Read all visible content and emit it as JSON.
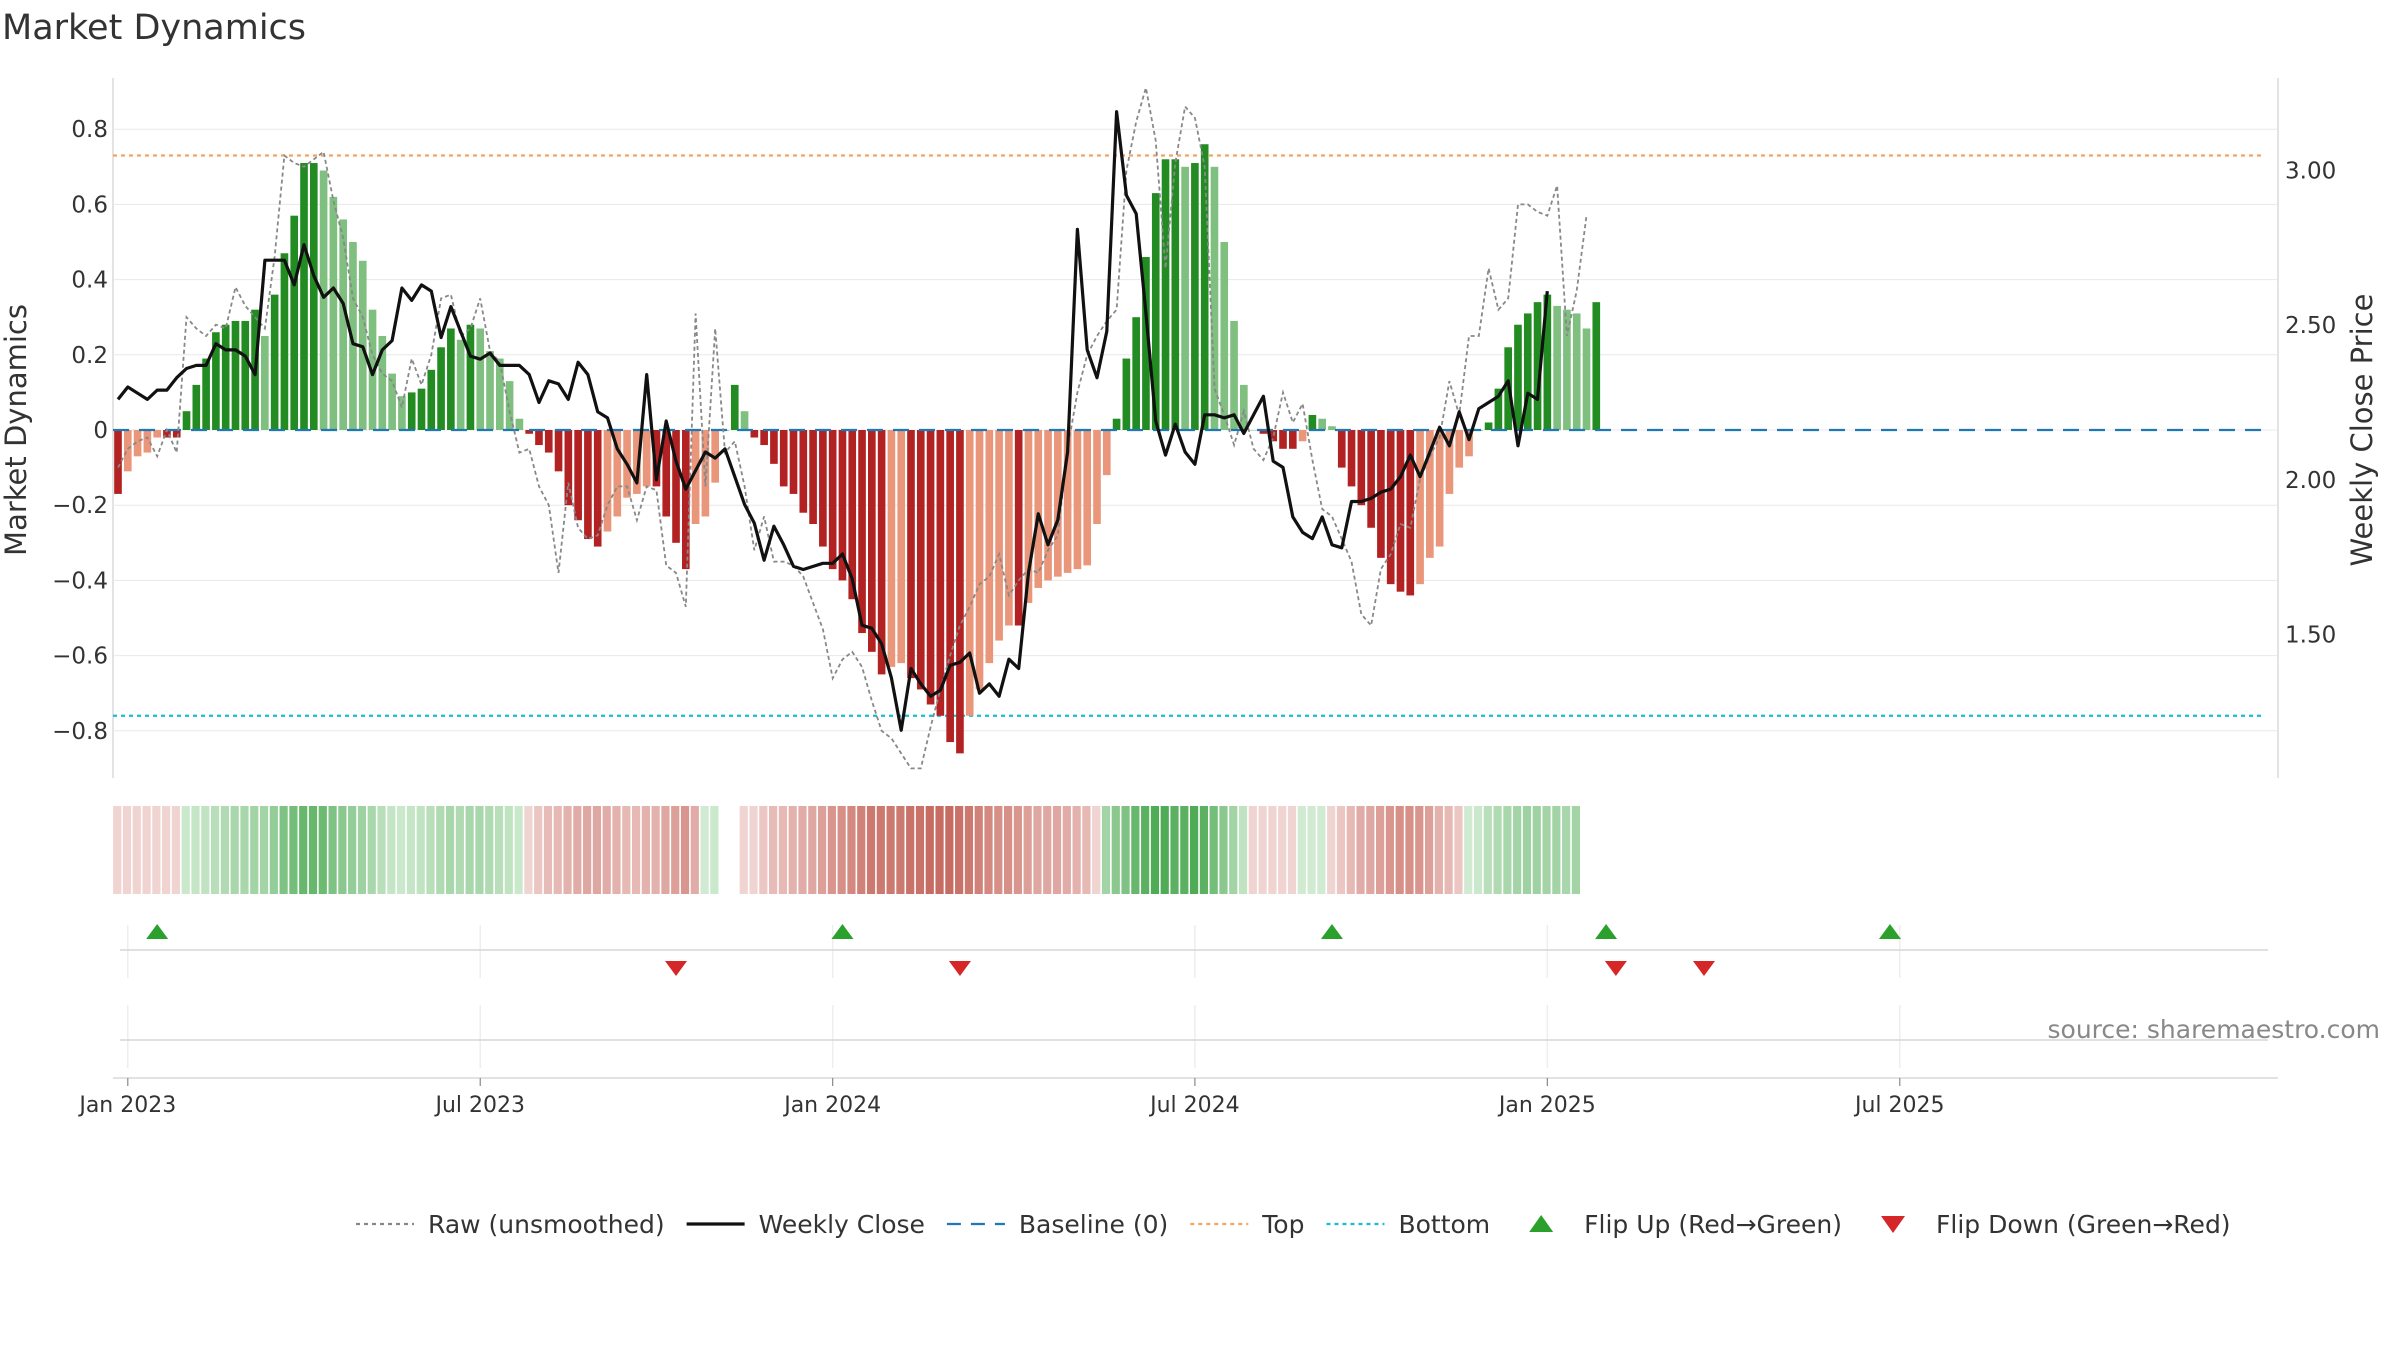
{
  "title": "Market Dynamics",
  "source_text": "source: sharemaestro.com",
  "chart_data": {
    "type": "bar",
    "title": "Market Dynamics",
    "ylabel_left": "Market Dynamics",
    "ylabel_right": "Weekly Close Price",
    "ylim_left": [
      -0.92,
      0.93
    ],
    "ylim_right": [
      1.03,
      3.21
    ],
    "yticks_left": [
      "0.8",
      "0.6",
      "0.4",
      "0.2",
      "0",
      "−0.2",
      "−0.4",
      "−0.6",
      "−0.8"
    ],
    "yticks_left_values": [
      0.8,
      0.6,
      0.4,
      0.2,
      0,
      -0.2,
      -0.4,
      -0.6,
      -0.8
    ],
    "yticks_right": [
      "3.00",
      "2.50",
      "2.00",
      "1.50"
    ],
    "yticks_right_values": [
      3.0,
      2.5,
      2.0,
      1.5
    ],
    "xticks": [
      "Jan 2023",
      "Jul 2023",
      "Jan 2024",
      "Jul 2024",
      "Jan 2025",
      "Jul 2025"
    ],
    "xticks_week_index": [
      1,
      37,
      73,
      110,
      146,
      182
    ],
    "top_level": 0.73,
    "bottom_level": -0.76,
    "baseline": 0,
    "grid": true,
    "legend_position": "bottom",
    "colors": {
      "green_strong": "#228b22",
      "green_light": "#7fbf7f",
      "red_strong": "#b22222",
      "red_light": "#e9967a",
      "price_line": "#111111",
      "raw_line": "#888888",
      "baseline": "#1f77b4",
      "top": "#f4a460",
      "bottom": "#17becf",
      "flip_up": "#2ca02c",
      "flip_down": "#d62728"
    },
    "series": [
      {
        "name": "Market Dynamics (bars)",
        "values": [
          -0.17,
          -0.11,
          -0.07,
          -0.06,
          -0.02,
          -0.02,
          -0.02,
          0.05,
          0.12,
          0.19,
          0.26,
          0.28,
          0.29,
          0.29,
          0.32,
          0.25,
          0.36,
          0.47,
          0.57,
          0.71,
          0.71,
          0.69,
          0.62,
          0.56,
          0.5,
          0.45,
          0.32,
          0.25,
          0.15,
          0.09,
          0.1,
          0.11,
          0.16,
          0.22,
          0.27,
          0.24,
          0.28,
          0.27,
          0.21,
          0.19,
          0.13,
          0.03,
          -0.01,
          -0.04,
          -0.06,
          -0.11,
          -0.2,
          -0.24,
          -0.29,
          -0.31,
          -0.27,
          -0.23,
          -0.18,
          -0.17,
          -0.15,
          -0.15,
          -0.23,
          -0.3,
          -0.37,
          -0.25,
          -0.23,
          -0.14,
          0.0,
          0.12,
          0.05,
          -0.02,
          -0.04,
          -0.09,
          -0.15,
          -0.17,
          -0.22,
          -0.25,
          -0.31,
          -0.37,
          -0.4,
          -0.45,
          -0.54,
          -0.59,
          -0.65,
          -0.63,
          -0.62,
          -0.66,
          -0.69,
          -0.73,
          -0.76,
          -0.83,
          -0.86,
          -0.76,
          -0.69,
          -0.62,
          -0.56,
          -0.52,
          -0.52,
          -0.46,
          -0.42,
          -0.4,
          -0.39,
          -0.38,
          -0.37,
          -0.36,
          -0.25,
          -0.12,
          0.03,
          0.19,
          0.3,
          0.46,
          0.63,
          0.72,
          0.72,
          0.7,
          0.71,
          0.76,
          0.7,
          0.5,
          0.29,
          0.12,
          0.0,
          -0.01,
          -0.03,
          -0.05,
          -0.05,
          -0.03,
          0.04,
          0.03,
          0.01,
          -0.1,
          -0.15,
          -0.2,
          -0.26,
          -0.34,
          -0.41,
          -0.43,
          -0.44,
          -0.41,
          -0.34,
          -0.31,
          -0.17,
          -0.1,
          -0.07,
          0.0,
          0.02,
          0.11,
          0.22,
          0.28,
          0.31,
          0.34,
          0.36,
          0.33,
          0.32,
          0.31,
          0.27,
          0.34
        ]
      },
      {
        "name": "Raw (unsmoothed)",
        "values": [
          -0.1,
          -0.05,
          -0.03,
          -0.02,
          -0.07,
          0.0,
          -0.06,
          0.3,
          0.27,
          0.25,
          0.28,
          0.27,
          0.38,
          0.33,
          0.3,
          0.27,
          0.46,
          0.73,
          0.71,
          0.7,
          0.72,
          0.74,
          0.61,
          0.51,
          0.35,
          0.3,
          0.2,
          0.15,
          0.13,
          0.06,
          0.19,
          0.12,
          0.2,
          0.35,
          0.36,
          0.25,
          0.27,
          0.35,
          0.21,
          0.18,
          0.05,
          -0.06,
          -0.05,
          -0.15,
          -0.2,
          -0.38,
          -0.14,
          -0.26,
          -0.29,
          -0.28,
          -0.2,
          -0.15,
          -0.15,
          -0.24,
          -0.15,
          -0.16,
          -0.36,
          -0.38,
          -0.47,
          0.31,
          -0.15,
          0.27,
          -0.06,
          -0.03,
          -0.15,
          -0.32,
          -0.23,
          -0.35,
          -0.35,
          -0.36,
          -0.39,
          -0.46,
          -0.53,
          -0.66,
          -0.61,
          -0.59,
          -0.63,
          -0.72,
          -0.8,
          -0.82,
          -0.86,
          -0.9,
          -0.9,
          -0.79,
          -0.69,
          -0.6,
          -0.52,
          -0.47,
          -0.41,
          -0.39,
          -0.33,
          -0.44,
          -0.4,
          -0.37,
          -0.38,
          -0.32,
          -0.28,
          -0.05,
          0.1,
          0.2,
          0.25,
          0.29,
          0.32,
          0.69,
          0.82,
          0.91,
          0.77,
          0.43,
          0.71,
          0.86,
          0.83,
          0.7,
          0.11,
          0.04,
          -0.04,
          0.05,
          -0.05,
          -0.08,
          -0.02,
          0.1,
          0.02,
          0.07,
          -0.08,
          -0.21,
          -0.23,
          -0.29,
          -0.35,
          -0.49,
          -0.52,
          -0.37,
          -0.33,
          -0.25,
          -0.26,
          -0.13,
          -0.07,
          -0.02,
          0.13,
          0.04,
          0.25,
          0.25,
          0.43,
          0.32,
          0.35,
          0.6,
          0.6,
          0.58,
          0.57,
          0.65,
          0.25,
          0.37,
          0.57
        ]
      },
      {
        "name": "Weekly Close",
        "values": [
          2.26,
          2.3,
          2.28,
          2.26,
          2.29,
          2.29,
          2.33,
          2.36,
          2.37,
          2.37,
          2.44,
          2.42,
          2.42,
          2.4,
          2.34,
          2.71,
          2.71,
          2.71,
          2.63,
          2.76,
          2.66,
          2.59,
          2.62,
          2.57,
          2.44,
          2.43,
          2.34,
          2.42,
          2.45,
          2.62,
          2.58,
          2.63,
          2.61,
          2.46,
          2.56,
          2.48,
          2.4,
          2.39,
          2.41,
          2.37,
          2.37,
          2.37,
          2.34,
          2.25,
          2.32,
          2.31,
          2.26,
          2.38,
          2.34,
          2.22,
          2.2,
          2.1,
          2.05,
          1.99,
          2.34,
          2.0,
          2.19,
          2.06,
          1.97,
          2.03,
          2.09,
          2.07,
          2.1,
          2.01,
          1.92,
          1.86,
          1.74,
          1.85,
          1.79,
          1.72,
          1.71,
          1.72,
          1.73,
          1.73,
          1.76,
          1.68,
          1.53,
          1.52,
          1.47,
          1.36,
          1.19,
          1.39,
          1.34,
          1.3,
          1.32,
          1.4,
          1.41,
          1.44,
          1.31,
          1.34,
          1.3,
          1.42,
          1.39,
          1.7,
          1.89,
          1.79,
          1.87,
          2.09,
          2.81,
          2.42,
          2.33,
          2.48,
          3.19,
          2.92,
          2.86,
          2.54,
          2.19,
          2.08,
          2.18,
          2.09,
          2.05,
          2.21,
          2.21,
          2.2,
          2.21,
          2.15,
          2.21,
          2.27,
          2.06,
          2.04,
          1.88,
          1.83,
          1.81,
          1.88,
          1.79,
          1.78,
          1.93,
          1.93,
          1.94,
          1.96,
          1.97,
          2.01,
          2.08,
          2.01,
          2.09,
          2.17,
          2.11,
          2.22,
          2.13,
          2.23,
          2.25,
          2.27,
          2.32,
          2.11,
          2.28,
          2.26,
          2.61
        ]
      }
    ],
    "strip_colors": [
      "#efd4d1",
      "#efd4d1",
      "#efd4d1",
      "#efd4d1",
      "#efd4d1",
      "#efd4d1",
      "#efd4d1",
      "#cae8cb",
      "#c5e5c7",
      "#c0e3c2",
      "#b8dfba",
      "#b0dbb2",
      "#a9d7ac",
      "#a9d7ac",
      "#a2d4a5",
      "#a2d4a5",
      "#93cd97",
      "#7ec383",
      "#73be78",
      "#67b86c",
      "#67b86c",
      "#6cbb71",
      "#7ec383",
      "#8ac88e",
      "#93cd97",
      "#9fd2a2",
      "#a9d7ac",
      "#b8dfba",
      "#c5e5c7",
      "#cae8cb",
      "#c5e5c7",
      "#c0e3c2",
      "#b8dfba",
      "#b0dbb2",
      "#a9d7ac",
      "#b0dbb2",
      "#a9d7ac",
      "#a9d7ac",
      "#b0dbb2",
      "#b8dfba",
      "#c0e3c2",
      "#cae8cb",
      "#efd4d1",
      "#ebc6c2",
      "#e7bbb7",
      "#e6b9b5",
      "#e3b2ad",
      "#e1aca7",
      "#dfa7a1",
      "#dfa7a1",
      "#e1aca7",
      "#e3b2ad",
      "#e6b9b5",
      "#e6b9b5",
      "#e3b2ad",
      "#e3b2ad",
      "#dfa7a1",
      "#dca099",
      "#d9968e",
      "#e1aca7",
      "#d0ebd1",
      "#cae8cb",
      "#ffffff",
      "#ffffff",
      "#efd4d1",
      "#efd4d1",
      "#ebc6c2",
      "#e7bbb7",
      "#e6b9b5",
      "#e3b2ad",
      "#e1aca7",
      "#dfa7a1",
      "#dca099",
      "#d9968e",
      "#d69088",
      "#d38980",
      "#d08278",
      "#cc7970",
      "#cc7970",
      "#cc7970",
      "#cc7970",
      "#c97269",
      "#c97269",
      "#c66c63",
      "#c66c63",
      "#c66c63",
      "#c97269",
      "#cc7970",
      "#d08278",
      "#d38980",
      "#d69088",
      "#d69088",
      "#d9968e",
      "#dca099",
      "#dfa7a1",
      "#dfa7a1",
      "#dfa7a1",
      "#e1aca7",
      "#e3b2ad",
      "#e6b9b5",
      "#efd4d1",
      "#a2d4a5",
      "#8ac88e",
      "#7ec383",
      "#67b86c",
      "#5bb161",
      "#50ab56",
      "#50ab56",
      "#5bb161",
      "#5bb161",
      "#50ab56",
      "#5bb161",
      "#73be78",
      "#8ac88e",
      "#a2d4a5",
      "#c0e3c2",
      "#efd4d1",
      "#efd4d1",
      "#efd4d1",
      "#efd4d1",
      "#efd4d1",
      "#d0ebd1",
      "#d0ebd1",
      "#d0ebd1",
      "#efd4d1",
      "#ebc6c2",
      "#e6b9b5",
      "#e1aca7",
      "#dfa7a1",
      "#dca099",
      "#d9968e",
      "#d69088",
      "#d69088",
      "#d9968e",
      "#dca099",
      "#e3b2ad",
      "#e6b9b5",
      "#ebc6c2",
      "#d0ebd1",
      "#cae8cb",
      "#b8dfba",
      "#b0dbb2",
      "#a9d7ac",
      "#a2d4a5",
      "#9fd2a2",
      "#9fd2a2",
      "#a2d4a5",
      "#a2d4a5",
      "#a9d7ac",
      "#a2d4a5"
    ],
    "flip_up_weeks": [
      4,
      74,
      124,
      152,
      181
    ],
    "flip_down_weeks": [
      57,
      86,
      153,
      162
    ]
  },
  "legend": [
    {
      "label": "Raw (unsmoothed)",
      "kind": "line-dotted",
      "color": "#888888"
    },
    {
      "label": "Weekly Close",
      "kind": "line-solid",
      "color": "#111111"
    },
    {
      "label": "Baseline (0)",
      "kind": "line-dashed",
      "color": "#1f77b4"
    },
    {
      "label": "Top",
      "kind": "line-dotted",
      "color": "#f4a460"
    },
    {
      "label": "Bottom",
      "kind": "line-dotted",
      "color": "#17becf"
    },
    {
      "label": "Flip Up (Red→Green)",
      "kind": "triangle-up",
      "color": "#2ca02c"
    },
    {
      "label": "Flip Down (Green→Red)",
      "kind": "triangle-down",
      "color": "#d62728"
    }
  ]
}
